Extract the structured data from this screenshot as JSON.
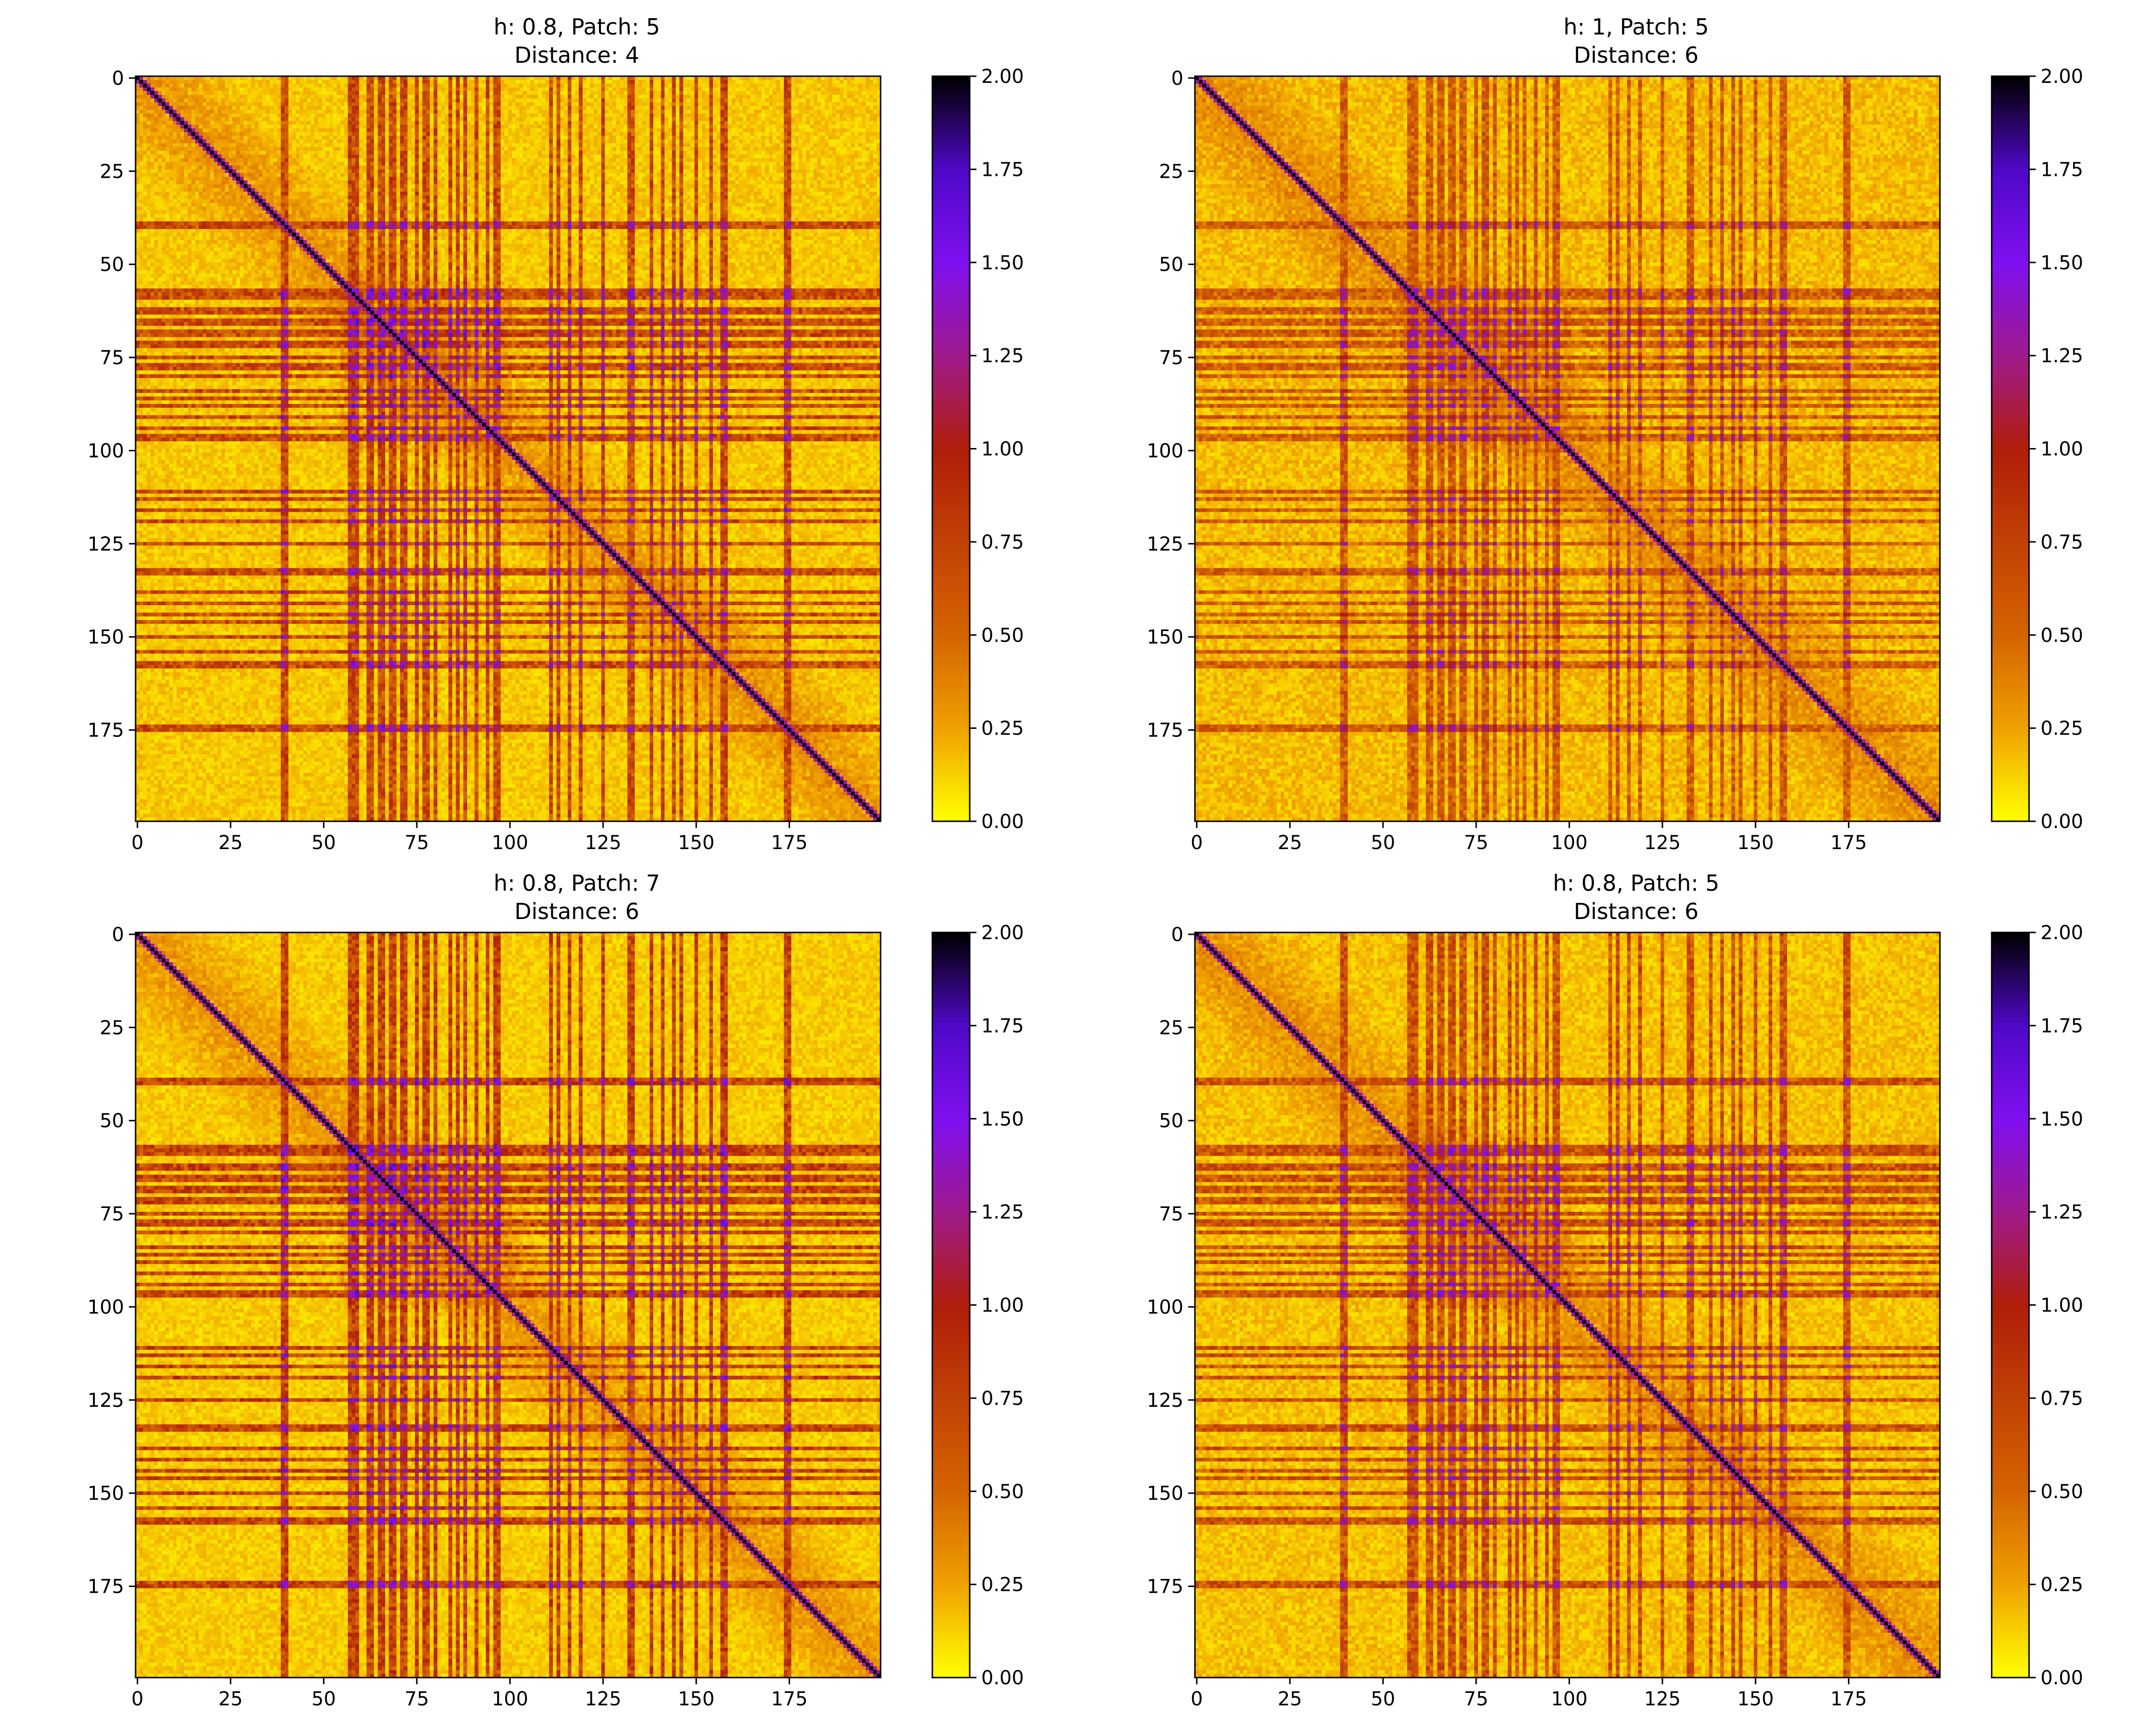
{
  "figure": {
    "colormap": "gnuplot_r",
    "colormap_stops": [
      {
        "v": 0.0,
        "color": "#ffff00"
      },
      {
        "v": 0.25,
        "color": "#f0a000"
      },
      {
        "v": 0.5,
        "color": "#d46400"
      },
      {
        "v": 1.0,
        "color": "#b01e0a"
      },
      {
        "v": 1.25,
        "color": "#a01a8c"
      },
      {
        "v": 1.5,
        "color": "#8010f0"
      },
      {
        "v": 1.75,
        "color": "#5008c8"
      },
      {
        "v": 2.0,
        "color": "#000000"
      }
    ]
  },
  "chart_data": [
    {
      "type": "heatmap",
      "title_line1": "h: 0.8, Patch: 5",
      "title_line2": "Distance: 4",
      "size": 200,
      "xticks": [
        "0",
        "25",
        "50",
        "75",
        "100",
        "125",
        "150",
        "175"
      ],
      "yticks": [
        "0",
        "25",
        "50",
        "75",
        "100",
        "125",
        "150",
        "175"
      ],
      "cbar_ticks": [
        "0.00",
        "0.25",
        "0.50",
        "0.75",
        "1.00",
        "1.25",
        "1.50",
        "1.75",
        "2.00"
      ],
      "vmin": 0,
      "vmax": 2,
      "diagonal_value": 2.0,
      "background_value": 0.18,
      "stripe_indices": [
        39,
        40,
        57,
        58,
        59,
        62,
        63,
        65,
        66,
        68,
        69,
        71,
        72,
        75,
        77,
        78,
        80,
        84,
        86,
        88,
        91,
        94,
        96,
        97,
        111,
        113,
        116,
        119,
        125,
        132,
        133,
        138,
        141,
        144,
        146,
        150,
        154,
        157,
        158,
        174,
        175
      ],
      "stripe_value": 0.75,
      "cross_value": 1.45,
      "dense_block": [
        55,
        100
      ],
      "seed": 11
    },
    {
      "type": "heatmap",
      "title_line1": "h: 1, Patch: 5",
      "title_line2": "Distance: 6",
      "size": 200,
      "xticks": [
        "0",
        "25",
        "50",
        "75",
        "100",
        "125",
        "150",
        "175"
      ],
      "yticks": [
        "0",
        "25",
        "50",
        "75",
        "100",
        "125",
        "150",
        "175"
      ],
      "cbar_ticks": [
        "0.00",
        "0.25",
        "0.50",
        "0.75",
        "1.00",
        "1.25",
        "1.50",
        "1.75",
        "2.00"
      ],
      "vmin": 0,
      "vmax": 2,
      "diagonal_value": 2.0,
      "background_value": 0.22,
      "stripe_indices": [
        39,
        40,
        57,
        58,
        59,
        62,
        63,
        65,
        66,
        68,
        69,
        71,
        72,
        75,
        77,
        78,
        80,
        84,
        86,
        88,
        91,
        94,
        96,
        97,
        111,
        113,
        116,
        119,
        125,
        132,
        133,
        138,
        141,
        144,
        146,
        150,
        154,
        157,
        158,
        174,
        175
      ],
      "stripe_value": 0.62,
      "cross_value": 1.3,
      "dense_block": [
        55,
        100
      ],
      "seed": 23
    },
    {
      "type": "heatmap",
      "title_line1": "h: 0.8, Patch: 7",
      "title_line2": "Distance: 6",
      "size": 200,
      "xticks": [
        "0",
        "25",
        "50",
        "75",
        "100",
        "125",
        "150",
        "175"
      ],
      "yticks": [
        "0",
        "25",
        "50",
        "75",
        "100",
        "125",
        "150",
        "175"
      ],
      "cbar_ticks": [
        "0.00",
        "0.25",
        "0.50",
        "0.75",
        "1.00",
        "1.25",
        "1.50",
        "1.75",
        "2.00"
      ],
      "vmin": 0,
      "vmax": 2,
      "diagonal_value": 2.0,
      "background_value": 0.17,
      "stripe_indices": [
        39,
        40,
        57,
        58,
        59,
        62,
        63,
        65,
        66,
        68,
        69,
        71,
        72,
        75,
        77,
        78,
        80,
        84,
        86,
        88,
        91,
        94,
        96,
        97,
        111,
        113,
        116,
        119,
        125,
        132,
        133,
        138,
        141,
        144,
        146,
        150,
        154,
        157,
        158,
        174,
        175
      ],
      "stripe_value": 0.8,
      "cross_value": 1.5,
      "dense_block": [
        55,
        100
      ],
      "seed": 37
    },
    {
      "type": "heatmap",
      "title_line1": "h: 0.8, Patch: 5",
      "title_line2": "Distance: 6",
      "size": 200,
      "xticks": [
        "0",
        "25",
        "50",
        "75",
        "100",
        "125",
        "150",
        "175"
      ],
      "yticks": [
        "0",
        "25",
        "50",
        "75",
        "100",
        "125",
        "150",
        "175"
      ],
      "cbar_ticks": [
        "0.00",
        "0.25",
        "0.50",
        "0.75",
        "1.00",
        "1.25",
        "1.50",
        "1.75",
        "2.00"
      ],
      "vmin": 0,
      "vmax": 2,
      "diagonal_value": 2.0,
      "background_value": 0.2,
      "stripe_indices": [
        39,
        40,
        57,
        58,
        59,
        62,
        63,
        65,
        66,
        68,
        69,
        71,
        72,
        75,
        77,
        78,
        80,
        84,
        86,
        88,
        91,
        94,
        96,
        97,
        111,
        113,
        116,
        119,
        125,
        132,
        133,
        138,
        141,
        144,
        146,
        150,
        154,
        157,
        158,
        174,
        175
      ],
      "stripe_value": 0.7,
      "cross_value": 1.4,
      "dense_block": [
        55,
        100
      ],
      "seed": 53
    }
  ]
}
